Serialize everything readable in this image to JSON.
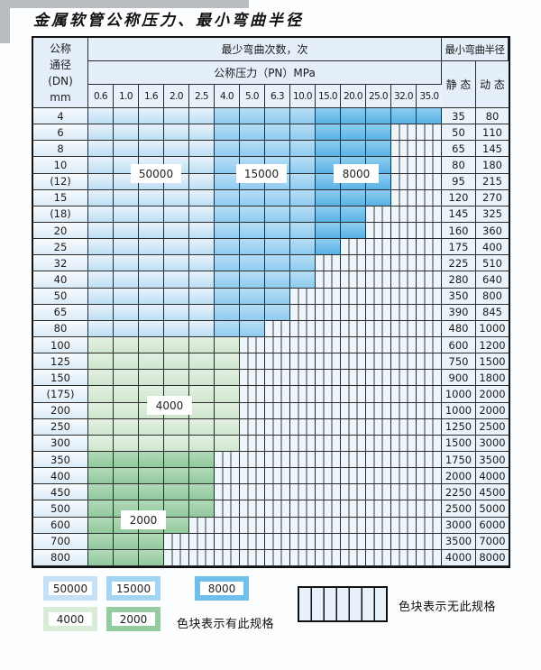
{
  "title": "金属软管公称压力、最小弯曲半径",
  "table": {
    "header": {
      "dn_lines": [
        "公称",
        "通径",
        "(DN)",
        "mm"
      ],
      "bend_cycles_label": "最少弯曲次数，次",
      "pressure_label": "公称压力（PN）MPa",
      "min_bend_radius_label": "最小弯曲半径",
      "static_label": "静 态",
      "dynamic_label": "动 态",
      "pressures": [
        "0.6",
        "1.0",
        "1.6",
        "2.0",
        "2.5",
        "4.0",
        "5.0",
        "6.3",
        "10.0",
        "15.0",
        "20.0",
        "25.0",
        "32.0",
        "35.0"
      ]
    },
    "band_column_groups": {
      "blue_50000_cols": [
        "0.6",
        "1.0",
        "1.6",
        "2.0",
        "2.5"
      ],
      "blue_15000_cols": [
        "4.0",
        "5.0",
        "6.3",
        "10.0"
      ],
      "blue_8000_cols": [
        "15.0",
        "20.0",
        "25.0",
        "32.0",
        "35.0"
      ]
    },
    "rows": [
      {
        "dn": "4",
        "colored": 14,
        "band": "blue",
        "static": "35",
        "dynamic": "80"
      },
      {
        "dn": "6",
        "colored": 12,
        "band": "blue",
        "static": "50",
        "dynamic": "110"
      },
      {
        "dn": "8",
        "colored": 12,
        "band": "blue",
        "static": "65",
        "dynamic": "145"
      },
      {
        "dn": "10",
        "colored": 12,
        "band": "blue",
        "static": "80",
        "dynamic": "180"
      },
      {
        "dn": "(12)",
        "colored": 12,
        "band": "blue",
        "static": "95",
        "dynamic": "215"
      },
      {
        "dn": "15",
        "colored": 12,
        "band": "blue",
        "static": "120",
        "dynamic": "270"
      },
      {
        "dn": "(18)",
        "colored": 11,
        "band": "blue",
        "static": "145",
        "dynamic": "325"
      },
      {
        "dn": "20",
        "colored": 11,
        "band": "blue",
        "static": "160",
        "dynamic": "360"
      },
      {
        "dn": "25",
        "colored": 10,
        "band": "blue",
        "static": "175",
        "dynamic": "400"
      },
      {
        "dn": "32",
        "colored": 9,
        "band": "blue",
        "static": "225",
        "dynamic": "510"
      },
      {
        "dn": "40",
        "colored": 9,
        "band": "blue",
        "static": "280",
        "dynamic": "640"
      },
      {
        "dn": "50",
        "colored": 8,
        "band": "blue",
        "static": "350",
        "dynamic": "800"
      },
      {
        "dn": "65",
        "colored": 8,
        "band": "blue",
        "static": "390",
        "dynamic": "845"
      },
      {
        "dn": "80",
        "colored": 7,
        "band": "blue",
        "static": "480",
        "dynamic": "1000"
      },
      {
        "dn": "100",
        "colored": 6,
        "band": "g4",
        "static": "600",
        "dynamic": "1200"
      },
      {
        "dn": "125",
        "colored": 6,
        "band": "g4",
        "static": "750",
        "dynamic": "1500"
      },
      {
        "dn": "150",
        "colored": 6,
        "band": "g4",
        "static": "900",
        "dynamic": "1800"
      },
      {
        "dn": "(175)",
        "colored": 6,
        "band": "g4",
        "static": "1000",
        "dynamic": "2000"
      },
      {
        "dn": "200",
        "colored": 6,
        "band": "g4",
        "static": "1000",
        "dynamic": "2000"
      },
      {
        "dn": "250",
        "colored": 6,
        "band": "g4",
        "static": "1250",
        "dynamic": "2500"
      },
      {
        "dn": "300",
        "colored": 6,
        "band": "g4",
        "static": "1500",
        "dynamic": "3000"
      },
      {
        "dn": "350",
        "colored": 5,
        "band": "g2",
        "static": "1750",
        "dynamic": "3500"
      },
      {
        "dn": "400",
        "colored": 5,
        "band": "g2",
        "static": "2000",
        "dynamic": "4000"
      },
      {
        "dn": "450",
        "colored": 5,
        "band": "g2",
        "static": "2250",
        "dynamic": "4500"
      },
      {
        "dn": "500",
        "colored": 5,
        "band": "g2",
        "static": "2500",
        "dynamic": "5000"
      },
      {
        "dn": "600",
        "colored": 4,
        "band": "g2",
        "static": "3000",
        "dynamic": "6000"
      },
      {
        "dn": "700",
        "colored": 3,
        "band": "g2",
        "static": "3500",
        "dynamic": "7000"
      },
      {
        "dn": "800",
        "colored": 3,
        "band": "g2",
        "static": "4000",
        "dynamic": "8000"
      }
    ]
  },
  "overlays": {
    "cycles_50000": "50000",
    "cycles_15000": "15000",
    "cycles_8000": "8000",
    "cycles_4000": "4000",
    "cycles_2000": "2000"
  },
  "legend": {
    "swatch_50000": "50000",
    "swatch_15000": "15000",
    "swatch_8000": "8000",
    "swatch_4000": "4000",
    "swatch_2000": "2000",
    "has_spec_note": "色块表示有此规格",
    "no_spec_note": "色块表示无此规格"
  },
  "colors": {
    "band_50000": "#bedff4",
    "band_15000": "#9fd2f1",
    "band_8000": "#6fbfea",
    "band_4000": "#d7ebd6",
    "band_2000": "#9bcfa5",
    "no_spec_bg": "#eef5fb",
    "grid_line": "#2b2b2b",
    "header_bg": "#e4effa"
  }
}
